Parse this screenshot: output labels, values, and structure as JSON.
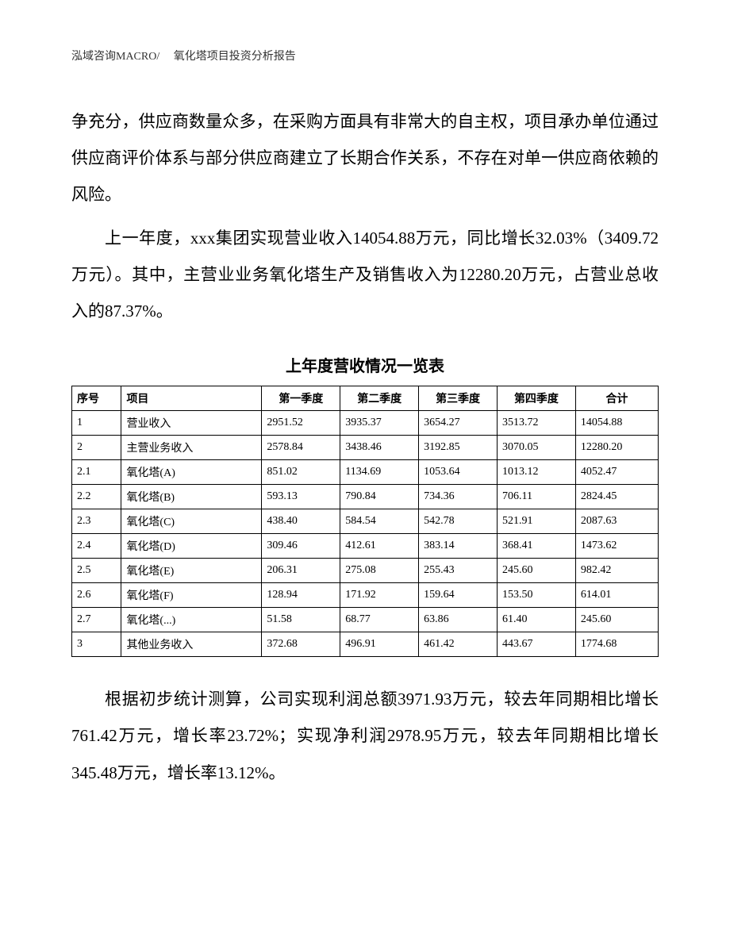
{
  "header": {
    "text": "泓域咨询MACRO/　 氧化塔项目投资分析报告"
  },
  "paragraphs": {
    "p1": "争充分，供应商数量众多，在采购方面具有非常大的自主权，项目承办单位通过供应商评价体系与部分供应商建立了长期合作关系，不存在对单一供应商依赖的风险。",
    "p2": "上一年度，xxx集团实现营业收入14054.88万元，同比增长32.03%（3409.72万元）。其中，主营业业务氧化塔生产及销售收入为12280.20万元，占营业总收入的87.37%。",
    "p3": "根据初步统计测算，公司实现利润总额3971.93万元，较去年同期相比增长761.42万元，增长率23.72%；实现净利润2978.95万元，较去年同期相比增长345.48万元，增长率13.12%。"
  },
  "table": {
    "title": "上年度营收情况一览表",
    "columns": [
      "序号",
      "项目",
      "第一季度",
      "第二季度",
      "第三季度",
      "第四季度",
      "合计"
    ],
    "rows": [
      [
        "1",
        "营业收入",
        "2951.52",
        "3935.37",
        "3654.27",
        "3513.72",
        "14054.88"
      ],
      [
        "2",
        "主营业务收入",
        "2578.84",
        "3438.46",
        "3192.85",
        "3070.05",
        "12280.20"
      ],
      [
        "2.1",
        "氧化塔(A)",
        "851.02",
        "1134.69",
        "1053.64",
        "1013.12",
        "4052.47"
      ],
      [
        "2.2",
        "氧化塔(B)",
        "593.13",
        "790.84",
        "734.36",
        "706.11",
        "2824.45"
      ],
      [
        "2.3",
        "氧化塔(C)",
        "438.40",
        "584.54",
        "542.78",
        "521.91",
        "2087.63"
      ],
      [
        "2.4",
        "氧化塔(D)",
        "309.46",
        "412.61",
        "383.14",
        "368.41",
        "1473.62"
      ],
      [
        "2.5",
        "氧化塔(E)",
        "206.31",
        "275.08",
        "255.43",
        "245.60",
        "982.42"
      ],
      [
        "2.6",
        "氧化塔(F)",
        "128.94",
        "171.92",
        "159.64",
        "153.50",
        "614.01"
      ],
      [
        "2.7",
        "氧化塔(...)",
        "51.58",
        "68.77",
        "63.86",
        "61.40",
        "245.60"
      ],
      [
        "3",
        "其他业务收入",
        "372.68",
        "496.91",
        "461.42",
        "443.67",
        "1774.68"
      ]
    ]
  },
  "styling": {
    "background_color": "#ffffff",
    "text_color": "#000000",
    "border_color": "#000000",
    "body_font_size": 21,
    "table_font_size": 14,
    "header_font_size": 14,
    "table_title_font_size": 20,
    "line_height": 2.2
  }
}
